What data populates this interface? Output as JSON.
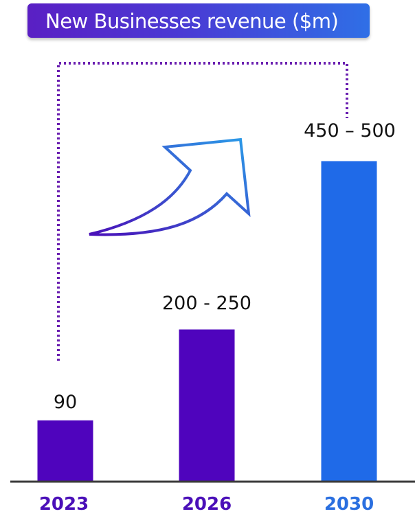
{
  "title": "New Businesses revenue ($m)",
  "colors": {
    "bar_primary": "#4f04bd",
    "bar_highlight": "#1f6ae8",
    "axis": "#3a3a3a",
    "dotted_line": "#6a1fb0",
    "arrow_start": "#4a0fb8",
    "arrow_end": "#2a9be8",
    "cat_primary": "#4a0fb8",
    "cat_highlight": "#2a6fe0"
  },
  "chart_data": {
    "type": "bar",
    "title": "New Businesses revenue ($m)",
    "categories": [
      "2023",
      "2026",
      "2030"
    ],
    "values": [
      90,
      225,
      475
    ],
    "ranges": [
      [
        90,
        90
      ],
      [
        200,
        250
      ],
      [
        450,
        500
      ]
    ],
    "value_labels": [
      "90",
      "200 - 250",
      "450 – 500"
    ],
    "xlabel": "",
    "ylabel": "",
    "ylim": [
      0,
      500
    ],
    "grid": false,
    "legend": "none",
    "highlight_index": 2,
    "annotations": [
      "upward growth arrow",
      "dotted bracket from 2023 to 2030"
    ]
  }
}
